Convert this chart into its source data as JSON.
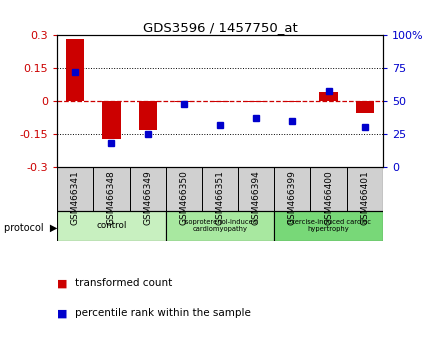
{
  "title": "GDS3596 / 1457750_at",
  "samples": [
    "GSM466341",
    "GSM466348",
    "GSM466349",
    "GSM466350",
    "GSM466351",
    "GSM466394",
    "GSM466399",
    "GSM466400",
    "GSM466401"
  ],
  "transformed_count": [
    0.285,
    -0.175,
    -0.13,
    -0.005,
    -0.005,
    -0.005,
    -0.005,
    0.04,
    -0.055
  ],
  "percentile_rank": [
    72,
    18,
    25,
    48,
    32,
    37,
    35,
    58,
    30
  ],
  "groups": [
    {
      "label": "control",
      "start": 0,
      "end": 3,
      "color": "#c8f0c0",
      "text_size": 9
    },
    {
      "label": "isoproterenol-induced\ncardiomyopathy",
      "start": 3,
      "end": 6,
      "color": "#a8e8a0",
      "text_size": 7
    },
    {
      "label": "exercise-induced cardiac\nhypertrophy",
      "start": 6,
      "end": 9,
      "color": "#78d878",
      "text_size": 7
    }
  ],
  "ylim_left": [
    -0.3,
    0.3
  ],
  "ylim_right": [
    0,
    100
  ],
  "yticks_left": [
    -0.3,
    -0.15,
    0.0,
    0.15,
    0.3
  ],
  "yticks_right": [
    0,
    25,
    50,
    75,
    100
  ],
  "ytick_labels_left": [
    "-0.3",
    "-0.15",
    "0",
    "0.15",
    "0.3"
  ],
  "ytick_labels_right": [
    "0",
    "25",
    "50",
    "75",
    "100%"
  ],
  "bar_color": "#cc0000",
  "dot_color": "#0000cc",
  "zero_line_color": "#cc0000",
  "bg_color": "#ffffff",
  "sample_bg": "#d0d0d0",
  "legend_items": [
    {
      "label": "transformed count",
      "color": "#cc0000"
    },
    {
      "label": "percentile rank within the sample",
      "color": "#0000cc"
    }
  ]
}
